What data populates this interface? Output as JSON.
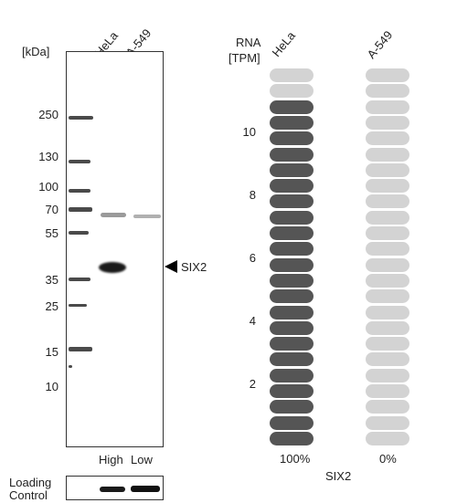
{
  "western_blot": {
    "kda_label": "[kDa]",
    "lanes": [
      "HeLa",
      "A-549"
    ],
    "markers": [
      "250",
      "130",
      "100",
      "70",
      "55",
      "35",
      "25",
      "15",
      "10"
    ],
    "target_label": "SIX2",
    "loading_labels": [
      "High",
      "Low"
    ],
    "loading_control_line1": "Loading",
    "loading_control_line2": "Control"
  },
  "rna": {
    "title_line1": "RNA",
    "title_line2": "[TPM]",
    "cell_lines": [
      "HeLa",
      "A-549"
    ],
    "axis_ticks": [
      "10",
      "8",
      "6",
      "4",
      "2"
    ],
    "percentages": [
      "100%",
      "0%"
    ],
    "gene": "SIX2",
    "colors": {
      "filled": "#555555",
      "empty": "#d3d3d3"
    },
    "hela_filled_fraction": 1.0,
    "a549_filled_fraction": 0.0
  }
}
